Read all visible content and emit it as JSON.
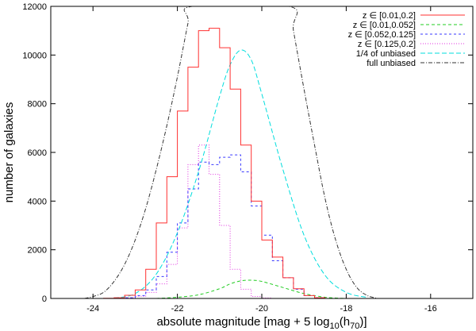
{
  "chart_data": {
    "type": "line",
    "xlabel": "absolute magnitude [mag + 5 log10(h70)]",
    "ylabel": "number of galaxies",
    "xlim": [
      -25,
      -15
    ],
    "ylim": [
      0,
      12000
    ],
    "x_ticks": [
      -24,
      -22,
      -20,
      -18,
      -16
    ],
    "y_ticks": [
      0,
      2000,
      4000,
      6000,
      8000,
      10000,
      12000
    ],
    "grid": false,
    "legend_position": "top-right",
    "bin_edges": [
      -24.0,
      -23.75,
      -23.5,
      -23.25,
      -23.0,
      -22.75,
      -22.5,
      -22.25,
      -22.0,
      -21.75,
      -21.5,
      -21.25,
      -21.0,
      -20.75,
      -20.5,
      -20.25,
      -20.0,
      -19.75,
      -19.5,
      -19.25,
      -19.0,
      -18.75,
      -18.5,
      -18.25,
      -18.0
    ],
    "series": [
      {
        "name": "z ∈ [0.01,0.2]",
        "color": "#ff3030",
        "dash": "solid",
        "style": "step",
        "values": [
          0,
          10,
          30,
          130,
          350,
          1200,
          3100,
          5000,
          7700,
          9500,
          11000,
          11100,
          10300,
          8600,
          6300,
          4000,
          2400,
          1700,
          850,
          400,
          120,
          30,
          0,
          0
        ]
      },
      {
        "name": "z ∈ [0.01,0.052]",
        "color": "#22cc22",
        "dash": "4,3",
        "style": "smooth",
        "x": [
          -22.5,
          -22,
          -21.5,
          -21,
          -20.75,
          -20.5,
          -20.25,
          -20,
          -19.5,
          -19,
          -18.5,
          -18
        ],
        "values": [
          0,
          50,
          150,
          400,
          600,
          720,
          750,
          700,
          450,
          200,
          50,
          0
        ]
      },
      {
        "name": "z ∈ [0.052,0.125]",
        "color": "#3a3aff",
        "dash": "3,3",
        "style": "step",
        "values": [
          0,
          0,
          0,
          30,
          120,
          350,
          900,
          1900,
          3100,
          4500,
          5600,
          5500,
          5800,
          5900,
          5200,
          3800,
          2600,
          1550,
          850,
          380,
          120,
          30,
          0,
          0
        ]
      },
      {
        "name": "z ∈ [0.125,0.2]",
        "color": "#e030e0",
        "dash": "1,2",
        "style": "step",
        "values": [
          0,
          0,
          10,
          30,
          90,
          250,
          600,
          1400,
          2900,
          5500,
          6300,
          5100,
          3000,
          1200,
          380,
          80,
          20,
          0,
          0,
          0,
          0,
          0,
          0,
          0
        ]
      },
      {
        "name": "1/4 of unbiased",
        "color": "#00dddd",
        "dash": "6,3",
        "style": "smooth",
        "x": [
          -23.5,
          -23,
          -22.5,
          -22,
          -21.5,
          -21,
          -20.75,
          -20.5,
          -20.25,
          -20,
          -19.5,
          -19,
          -18.5,
          -18,
          -17.5
        ],
        "values": [
          20,
          200,
          1000,
          2700,
          5200,
          8300,
          9600,
          10200,
          9800,
          8400,
          5300,
          2600,
          950,
          250,
          40
        ]
      },
      {
        "name": "full unbiased",
        "color": "#333333",
        "dash": "5,2,1,2",
        "style": "smooth",
        "x": [
          -24.2,
          -24,
          -23.75,
          -23.5,
          -23.25,
          -23,
          -22.75,
          -22.5,
          -22.25,
          -22,
          -21.75,
          -21.65,
          -19.35,
          -19.25,
          -19,
          -18.75,
          -18.5,
          -18.25,
          -18,
          -17.75,
          -17.5,
          -17.25
        ],
        "values": [
          0,
          80,
          250,
          700,
          1400,
          2400,
          3700,
          5300,
          7100,
          9100,
          11300,
          12000,
          12000,
          11000,
          8600,
          6300,
          4100,
          2400,
          1200,
          450,
          120,
          0
        ]
      }
    ]
  }
}
